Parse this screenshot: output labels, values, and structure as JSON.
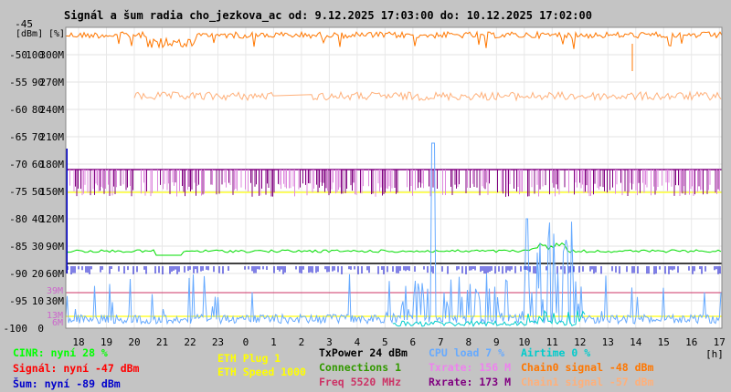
{
  "title": "Signál a šum radia cho_jezkova_ac od: 9.12.2025 17:03:00 do: 10.12.2025 17:02:00",
  "chart_data": {
    "type": "line",
    "y_axis_dbm": {
      "label": "[dBm]",
      "range": [
        -100,
        -45
      ],
      "ticks": [
        "-45",
        "-50",
        "-55",
        "-60",
        "-65",
        "-70",
        "-75",
        "-80",
        "-85",
        "-90",
        "-95",
        "-100"
      ]
    },
    "y_axis_percent": {
      "label": "[%]",
      "range": [
        0,
        100
      ],
      "ticks": [
        "100",
        "90",
        "80",
        "70",
        "60",
        "50",
        "40",
        "30",
        "20",
        "10",
        "0"
      ]
    },
    "y_axis_rate": {
      "ticks": [
        "300M",
        "270M",
        "240M",
        "210M",
        "180M",
        "150M",
        "120M",
        "90M",
        "60M",
        "30M"
      ]
    },
    "markers": [
      "39M",
      "13M",
      "6M"
    ],
    "x_axis": {
      "label": "[h]",
      "ticks": [
        "18",
        "19",
        "20",
        "21",
        "22",
        "23",
        "0",
        "1",
        "2",
        "3",
        "4",
        "5",
        "6",
        "7",
        "8",
        "9",
        "10",
        "11",
        "12",
        "13",
        "14",
        "15",
        "16",
        "17"
      ]
    },
    "series": [
      {
        "name": "Chain0 signal",
        "color": "#ff7700",
        "typical_dbm": -47
      },
      {
        "name": "Chain1 signal",
        "color": "#ffb07a",
        "typical_dbm": -57
      },
      {
        "name": "Rxrate",
        "color": "#800080",
        "typical_mbps": 173
      },
      {
        "name": "Txrate",
        "color": "#e080e0",
        "typical_mbps": 156
      },
      {
        "name": "TxPower",
        "color": "#000000",
        "typical_dbm": 24
      },
      {
        "name": "Connections",
        "color": "#00cc00",
        "typical": 1
      },
      {
        "name": "CINR",
        "color": "#00ff00",
        "typical_pct": 28
      },
      {
        "name": "Šum",
        "color": "#0000cc",
        "typical_dbm": -89
      },
      {
        "name": "CPU load",
        "color": "#66aaff",
        "typical_pct": 7
      },
      {
        "name": "Airtime",
        "color": "#00cccc",
        "typical_pct": 0
      },
      {
        "name": "ETH Plug",
        "color": "#ffff00",
        "typical": 1
      },
      {
        "name": "ETH Speed",
        "color": "#ffff00",
        "typical": 1000
      },
      {
        "name": "Freq",
        "color": "#cc3366",
        "typical_mhz": 5520
      }
    ]
  },
  "legend": {
    "cinr": "CINR: nyní 28 %",
    "signal": "Signál: nyní -47 dBm",
    "sum": "Šum: nyní -89 dBm",
    "eth_plug": "ETH Plug 1",
    "eth_speed": "ETH Speed 1000",
    "txpower": "TxPower 24 dBm",
    "connections": "Connections 1",
    "freq": "Freq 5520 MHz",
    "cpu": "CPU load 7 %",
    "txrate": "Txrate: 156 M",
    "rxrate": "Rxrate: 173 M",
    "airtime": "Airtime 0 %",
    "chain0": "Chain0 signal -48 dBm",
    "chain1": "Chain1 signal -57 dBm"
  },
  "colors": {
    "cinr": "#00ff00",
    "signal": "#ff0000",
    "sum": "#0000cc",
    "eth": "#ffff00",
    "txpower": "#000000",
    "connections": "#339900",
    "freq": "#cc3366",
    "cpu": "#66aaff",
    "txrate": "#ee82ee",
    "rxrate": "#800080",
    "airtime": "#00cccc",
    "chain0": "#ff7700",
    "chain1": "#ffb07a"
  }
}
